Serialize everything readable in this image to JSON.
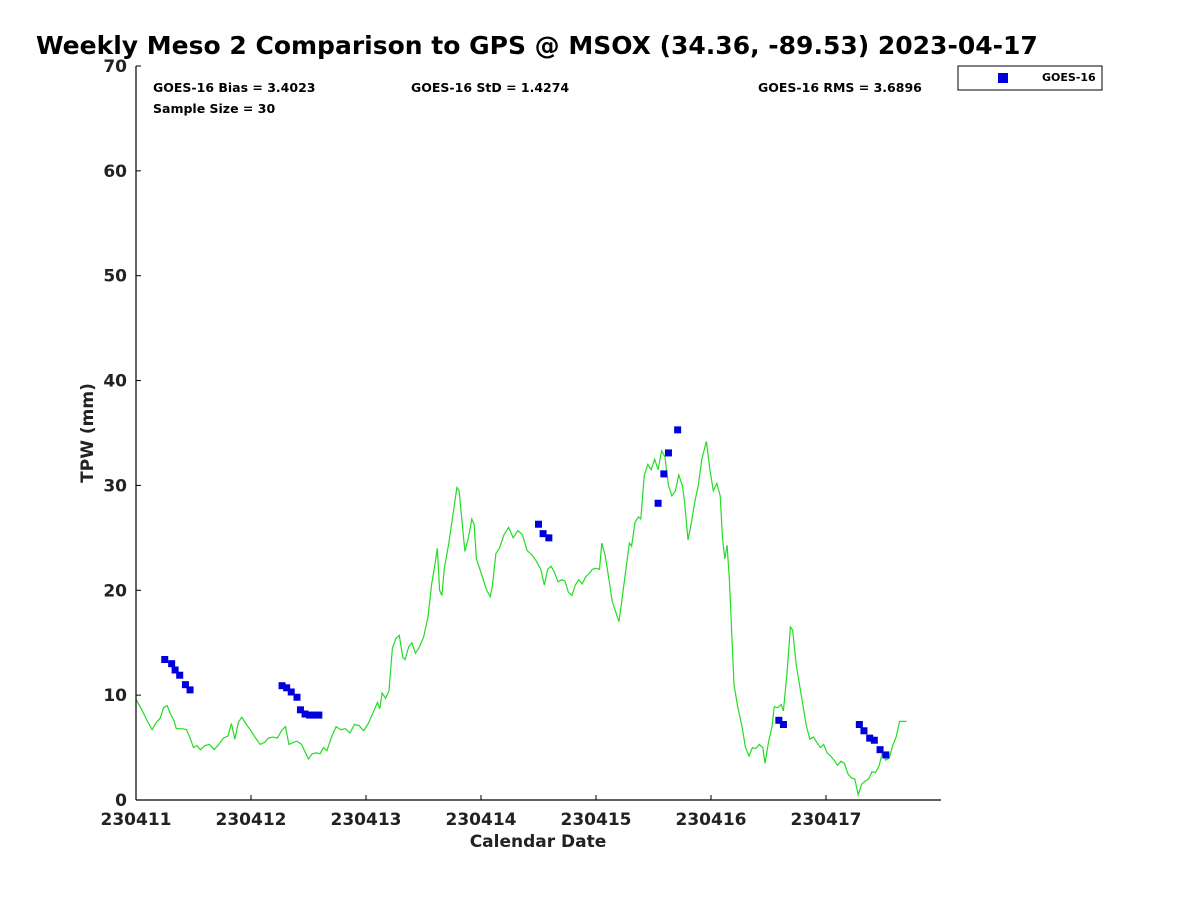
{
  "chart_data": {
    "type": "scatter",
    "title": "Weekly Meso 2 Comparison to GPS @ MSOX (34.36, -89.53) 2023-04-17",
    "xlabel": "Calendar Date",
    "ylabel": "TPW (mm)",
    "xlim": [
      0,
      7
    ],
    "ylim": [
      0,
      70
    ],
    "x_ticks": [
      0,
      1,
      2,
      3,
      4,
      5,
      6
    ],
    "x_tick_labels": [
      "230411",
      "230412",
      "230413",
      "230414",
      "230415",
      "230416",
      "230417"
    ],
    "y_ticks": [
      0,
      10,
      20,
      30,
      40,
      50,
      60,
      70
    ],
    "y_tick_labels": [
      "0",
      "10",
      "20",
      "30",
      "40",
      "50",
      "60",
      "70"
    ],
    "stats": {
      "bias": "GOES-16 Bias = 3.4023",
      "std": "GOES-16 StD = 1.4274",
      "rms": "GOES-16 RMS = 3.6896",
      "sample": "Sample Size = 30"
    },
    "legend": {
      "position": "top-right",
      "entries": [
        "GOES-16"
      ]
    },
    "colors": {
      "goes": "#0000dd",
      "gps": "#22dd22"
    },
    "series": [
      {
        "name": "GOES-16",
        "marker": "square",
        "points": [
          [
            0.25,
            13.4
          ],
          [
            0.31,
            13.0
          ],
          [
            0.34,
            12.4
          ],
          [
            0.38,
            11.9
          ],
          [
            0.43,
            11.0
          ],
          [
            0.47,
            10.5
          ],
          [
            1.27,
            10.9
          ],
          [
            1.31,
            10.7
          ],
          [
            1.35,
            10.3
          ],
          [
            1.4,
            9.8
          ],
          [
            1.43,
            8.6
          ],
          [
            1.47,
            8.2
          ],
          [
            1.51,
            8.1
          ],
          [
            1.55,
            8.1
          ],
          [
            1.59,
            8.1
          ],
          [
            3.5,
            26.3
          ],
          [
            3.54,
            25.4
          ],
          [
            3.59,
            25.0
          ],
          [
            4.54,
            28.3
          ],
          [
            4.59,
            31.1
          ],
          [
            4.63,
            33.1
          ],
          [
            4.71,
            35.3
          ],
          [
            5.59,
            7.6
          ],
          [
            5.63,
            7.2
          ],
          [
            6.29,
            7.2
          ],
          [
            6.33,
            6.6
          ],
          [
            6.38,
            5.9
          ],
          [
            6.42,
            5.7
          ],
          [
            6.47,
            4.8
          ],
          [
            6.52,
            4.3
          ]
        ]
      },
      {
        "name": "GPS",
        "type": "line",
        "points": [
          [
            0.0,
            9.6
          ],
          [
            0.05,
            8.6
          ],
          [
            0.1,
            7.5
          ],
          [
            0.14,
            6.7
          ],
          [
            0.17,
            7.3
          ],
          [
            0.21,
            7.8
          ],
          [
            0.24,
            8.8
          ],
          [
            0.27,
            9.0
          ],
          [
            0.3,
            8.2
          ],
          [
            0.33,
            7.6
          ],
          [
            0.35,
            6.8
          ],
          [
            0.4,
            6.8
          ],
          [
            0.44,
            6.7
          ],
          [
            0.47,
            5.9
          ],
          [
            0.5,
            5.0
          ],
          [
            0.53,
            5.2
          ],
          [
            0.56,
            4.8
          ],
          [
            0.6,
            5.2
          ],
          [
            0.64,
            5.3
          ],
          [
            0.68,
            4.8
          ],
          [
            0.72,
            5.3
          ],
          [
            0.76,
            5.9
          ],
          [
            0.8,
            6.1
          ],
          [
            0.83,
            7.3
          ],
          [
            0.86,
            5.8
          ],
          [
            0.89,
            7.4
          ],
          [
            0.92,
            7.9
          ],
          [
            0.96,
            7.2
          ],
          [
            1.0,
            6.6
          ],
          [
            1.04,
            5.9
          ],
          [
            1.08,
            5.3
          ],
          [
            1.12,
            5.5
          ],
          [
            1.15,
            5.9
          ],
          [
            1.19,
            6.0
          ],
          [
            1.23,
            5.9
          ],
          [
            1.27,
            6.7
          ],
          [
            1.3,
            7.0
          ],
          [
            1.33,
            5.3
          ],
          [
            1.37,
            5.5
          ],
          [
            1.4,
            5.6
          ],
          [
            1.44,
            5.3
          ],
          [
            1.47,
            4.6
          ],
          [
            1.5,
            3.9
          ],
          [
            1.53,
            4.4
          ],
          [
            1.57,
            4.5
          ],
          [
            1.6,
            4.4
          ],
          [
            1.63,
            5.0
          ],
          [
            1.66,
            4.7
          ],
          [
            1.7,
            6.0
          ],
          [
            1.74,
            7.0
          ],
          [
            1.78,
            6.7
          ],
          [
            1.82,
            6.8
          ],
          [
            1.86,
            6.4
          ],
          [
            1.9,
            7.2
          ],
          [
            1.94,
            7.1
          ],
          [
            1.98,
            6.6
          ],
          [
            2.02,
            7.3
          ],
          [
            2.06,
            8.3
          ],
          [
            2.1,
            9.3
          ],
          [
            2.12,
            8.7
          ],
          [
            2.14,
            10.2
          ],
          [
            2.17,
            9.7
          ],
          [
            2.2,
            10.4
          ],
          [
            2.23,
            14.5
          ],
          [
            2.26,
            15.4
          ],
          [
            2.29,
            15.7
          ],
          [
            2.32,
            13.6
          ],
          [
            2.34,
            13.4
          ],
          [
            2.37,
            14.6
          ],
          [
            2.4,
            15.0
          ],
          [
            2.43,
            14.0
          ],
          [
            2.46,
            14.5
          ],
          [
            2.5,
            15.5
          ],
          [
            2.54,
            17.5
          ],
          [
            2.57,
            20.5
          ],
          [
            2.6,
            22.5
          ],
          [
            2.62,
            24.0
          ],
          [
            2.64,
            20.0
          ],
          [
            2.66,
            19.5
          ],
          [
            2.68,
            22.0
          ],
          [
            2.72,
            24.5
          ],
          [
            2.76,
            27.5
          ],
          [
            2.79,
            29.8
          ],
          [
            2.81,
            29.5
          ],
          [
            2.84,
            26.0
          ],
          [
            2.86,
            23.7
          ],
          [
            2.89,
            25.0
          ],
          [
            2.92,
            26.8
          ],
          [
            2.94,
            26.3
          ],
          [
            2.96,
            23.0
          ],
          [
            2.99,
            22.0
          ],
          [
            3.02,
            21.0
          ],
          [
            3.05,
            20.0
          ],
          [
            3.08,
            19.4
          ],
          [
            3.1,
            20.5
          ],
          [
            3.13,
            23.5
          ],
          [
            3.16,
            24.0
          ],
          [
            3.2,
            25.3
          ],
          [
            3.24,
            26.0
          ],
          [
            3.28,
            25.0
          ],
          [
            3.32,
            25.7
          ],
          [
            3.36,
            25.3
          ],
          [
            3.4,
            23.8
          ],
          [
            3.44,
            23.4
          ],
          [
            3.48,
            22.8
          ],
          [
            3.52,
            22.0
          ],
          [
            3.55,
            20.5
          ],
          [
            3.58,
            22.0
          ],
          [
            3.61,
            22.3
          ],
          [
            3.64,
            21.7
          ],
          [
            3.67,
            20.8
          ],
          [
            3.7,
            21.0
          ],
          [
            3.73,
            20.9
          ],
          [
            3.76,
            19.8
          ],
          [
            3.79,
            19.5
          ],
          [
            3.82,
            20.5
          ],
          [
            3.85,
            21.0
          ],
          [
            3.88,
            20.6
          ],
          [
            3.91,
            21.3
          ],
          [
            3.94,
            21.6
          ],
          [
            3.97,
            22.0
          ],
          [
            4.0,
            22.1
          ],
          [
            4.03,
            22.0
          ],
          [
            4.05,
            24.5
          ],
          [
            4.08,
            23.3
          ],
          [
            4.11,
            21.2
          ],
          [
            4.14,
            19.0
          ],
          [
            4.17,
            18.0
          ],
          [
            4.2,
            17.0
          ],
          [
            4.23,
            19.5
          ],
          [
            4.26,
            22.0
          ],
          [
            4.29,
            24.5
          ],
          [
            4.31,
            24.2
          ],
          [
            4.34,
            26.5
          ],
          [
            4.37,
            27.0
          ],
          [
            4.39,
            26.8
          ],
          [
            4.42,
            31.0
          ],
          [
            4.45,
            32.0
          ],
          [
            4.48,
            31.5
          ],
          [
            4.51,
            32.5
          ],
          [
            4.54,
            31.5
          ],
          [
            4.57,
            33.3
          ],
          [
            4.6,
            32.7
          ],
          [
            4.63,
            30.0
          ],
          [
            4.66,
            29.0
          ],
          [
            4.69,
            29.5
          ],
          [
            4.72,
            31.0
          ],
          [
            4.75,
            30.0
          ],
          [
            4.77,
            28.5
          ],
          [
            4.8,
            24.8
          ],
          [
            4.83,
            26.5
          ],
          [
            4.86,
            28.5
          ],
          [
            4.89,
            30.0
          ],
          [
            4.92,
            32.5
          ],
          [
            4.96,
            34.2
          ],
          [
            4.99,
            31.5
          ],
          [
            5.02,
            29.5
          ],
          [
            5.05,
            30.2
          ],
          [
            5.08,
            29.0
          ],
          [
            5.1,
            25.0
          ],
          [
            5.12,
            23.0
          ],
          [
            5.14,
            24.3
          ],
          [
            5.16,
            21.0
          ],
          [
            5.18,
            16.0
          ],
          [
            5.2,
            11.0
          ],
          [
            5.23,
            9.0
          ],
          [
            5.27,
            7.0
          ],
          [
            5.3,
            5.0
          ],
          [
            5.33,
            4.2
          ],
          [
            5.36,
            5.0
          ],
          [
            5.39,
            4.9
          ],
          [
            5.42,
            5.3
          ],
          [
            5.45,
            5.0
          ],
          [
            5.47,
            3.5
          ],
          [
            5.5,
            5.5
          ],
          [
            5.53,
            7.0
          ],
          [
            5.55,
            8.9
          ],
          [
            5.58,
            8.8
          ],
          [
            5.61,
            9.1
          ],
          [
            5.63,
            8.5
          ],
          [
            5.66,
            12.0
          ],
          [
            5.69,
            16.5
          ],
          [
            5.71,
            16.2
          ],
          [
            5.74,
            13.0
          ],
          [
            5.77,
            11.0
          ],
          [
            5.8,
            9.0
          ],
          [
            5.83,
            7.0
          ],
          [
            5.86,
            5.8
          ],
          [
            5.89,
            6.0
          ],
          [
            5.92,
            5.5
          ],
          [
            5.95,
            5.0
          ],
          [
            5.98,
            5.3
          ],
          [
            6.01,
            4.5
          ],
          [
            6.04,
            4.2
          ],
          [
            6.07,
            3.8
          ],
          [
            6.1,
            3.3
          ],
          [
            6.13,
            3.7
          ],
          [
            6.16,
            3.5
          ],
          [
            6.19,
            2.5
          ],
          [
            6.22,
            2.1
          ],
          [
            6.25,
            2.0
          ],
          [
            6.28,
            0.5
          ],
          [
            6.31,
            1.5
          ],
          [
            6.34,
            1.8
          ],
          [
            6.37,
            2.0
          ],
          [
            6.4,
            2.7
          ],
          [
            6.43,
            2.6
          ],
          [
            6.46,
            3.2
          ],
          [
            6.49,
            4.5
          ],
          [
            6.52,
            3.8
          ],
          [
            6.55,
            4.0
          ],
          [
            6.58,
            5.2
          ],
          [
            6.61,
            6.0
          ],
          [
            6.64,
            7.5
          ],
          [
            6.7,
            7.5
          ]
        ]
      }
    ]
  }
}
